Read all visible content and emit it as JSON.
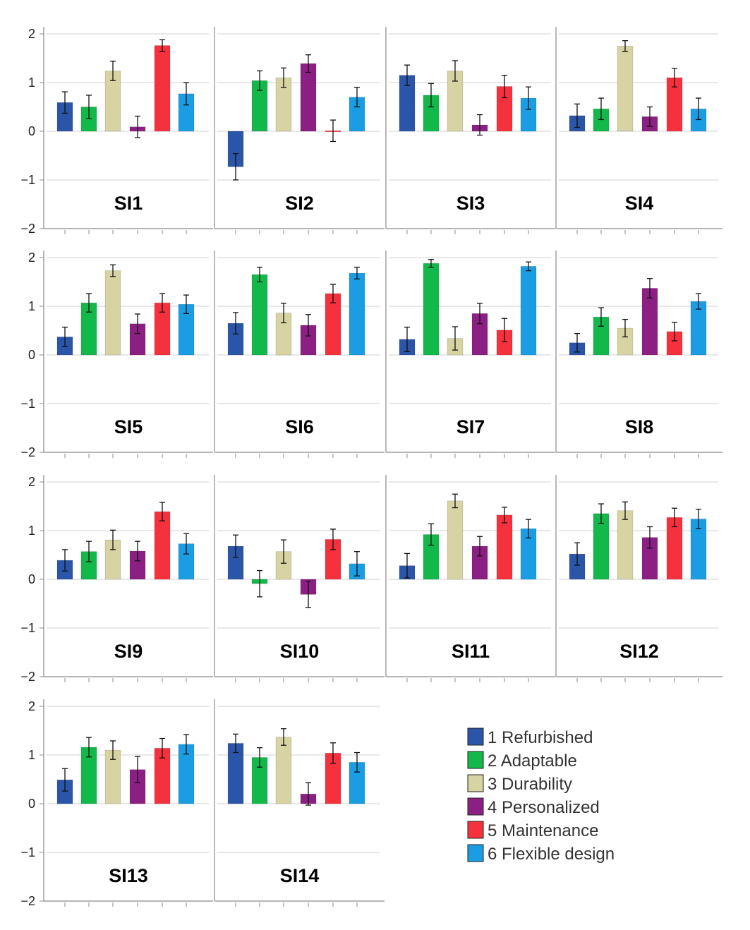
{
  "chart_data": {
    "type": "bar",
    "title": "",
    "xlabel": "",
    "ylabel": "",
    "ylim": [
      -2,
      2
    ],
    "yticks": [
      "2",
      "1",
      "0",
      "−1",
      "−2"
    ],
    "yticks_values": [
      2,
      1,
      0,
      -1,
      -2
    ],
    "categories": [
      "1 Refurbished",
      "2 Adaptable",
      "3 Durability",
      "4 Personalized",
      "5 Maintenance",
      "6 Flexible design"
    ],
    "colors": [
      "#2a55a8",
      "#13b84a",
      "#d8d3a2",
      "#8b1f83",
      "#f4313c",
      "#1a9de3"
    ],
    "grid": true,
    "legend_position": "bottom-right",
    "panels": [
      {
        "name": "SI1",
        "values": [
          0.59,
          0.5,
          1.24,
          0.09,
          1.76,
          0.77
        ],
        "err": [
          0.22,
          0.24,
          0.2,
          0.22,
          0.12,
          0.23
        ]
      },
      {
        "name": "SI2",
        "values": [
          -0.73,
          1.04,
          1.1,
          1.39,
          0.01,
          0.7
        ],
        "err": [
          0.27,
          0.2,
          0.2,
          0.18,
          0.22,
          0.2
        ]
      },
      {
        "name": "SI3",
        "values": [
          1.15,
          0.74,
          1.24,
          0.13,
          0.92,
          0.68
        ],
        "err": [
          0.21,
          0.24,
          0.21,
          0.21,
          0.23,
          0.23
        ]
      },
      {
        "name": "SI4",
        "values": [
          0.32,
          0.46,
          1.75,
          0.3,
          1.1,
          0.46
        ],
        "err": [
          0.24,
          0.22,
          0.11,
          0.2,
          0.19,
          0.22
        ]
      },
      {
        "name": "SI5",
        "values": [
          0.37,
          1.07,
          1.73,
          0.64,
          1.07,
          1.04
        ],
        "err": [
          0.2,
          0.19,
          0.12,
          0.2,
          0.19,
          0.19
        ]
      },
      {
        "name": "SI6",
        "values": [
          0.65,
          1.65,
          0.86,
          0.61,
          1.26,
          1.68
        ],
        "err": [
          0.22,
          0.15,
          0.2,
          0.22,
          0.19,
          0.12
        ]
      },
      {
        "name": "SI7",
        "values": [
          0.32,
          1.88,
          0.34,
          0.85,
          0.51,
          1.82
        ],
        "err": [
          0.25,
          0.08,
          0.24,
          0.21,
          0.24,
          0.09
        ]
      },
      {
        "name": "SI8",
        "values": [
          0.25,
          0.78,
          0.55,
          1.37,
          0.48,
          1.1
        ],
        "err": [
          0.19,
          0.19,
          0.18,
          0.2,
          0.19,
          0.16
        ]
      },
      {
        "name": "SI9",
        "values": [
          0.39,
          0.57,
          0.81,
          0.58,
          1.39,
          0.73
        ],
        "err": [
          0.22,
          0.21,
          0.2,
          0.2,
          0.19,
          0.21
        ]
      },
      {
        "name": "SI10",
        "values": [
          0.68,
          -0.09,
          0.57,
          -0.31,
          0.82,
          0.32
        ],
        "err": [
          0.23,
          0.27,
          0.24,
          0.27,
          0.21,
          0.25
        ]
      },
      {
        "name": "SI11",
        "values": [
          0.28,
          0.92,
          1.61,
          0.68,
          1.32,
          1.04
        ],
        "err": [
          0.25,
          0.22,
          0.14,
          0.2,
          0.16,
          0.19
        ]
      },
      {
        "name": "SI12",
        "values": [
          0.52,
          1.35,
          1.41,
          0.86,
          1.27,
          1.24
        ],
        "err": [
          0.23,
          0.2,
          0.18,
          0.22,
          0.19,
          0.2
        ]
      },
      {
        "name": "SI13",
        "values": [
          0.49,
          1.16,
          1.1,
          0.7,
          1.14,
          1.22
        ],
        "err": [
          0.23,
          0.2,
          0.19,
          0.27,
          0.2,
          0.2
        ]
      },
      {
        "name": "SI14",
        "values": [
          1.24,
          0.95,
          1.37,
          0.2,
          1.04,
          0.85
        ],
        "err": [
          0.19,
          0.2,
          0.17,
          0.23,
          0.21,
          0.2
        ]
      }
    ]
  }
}
